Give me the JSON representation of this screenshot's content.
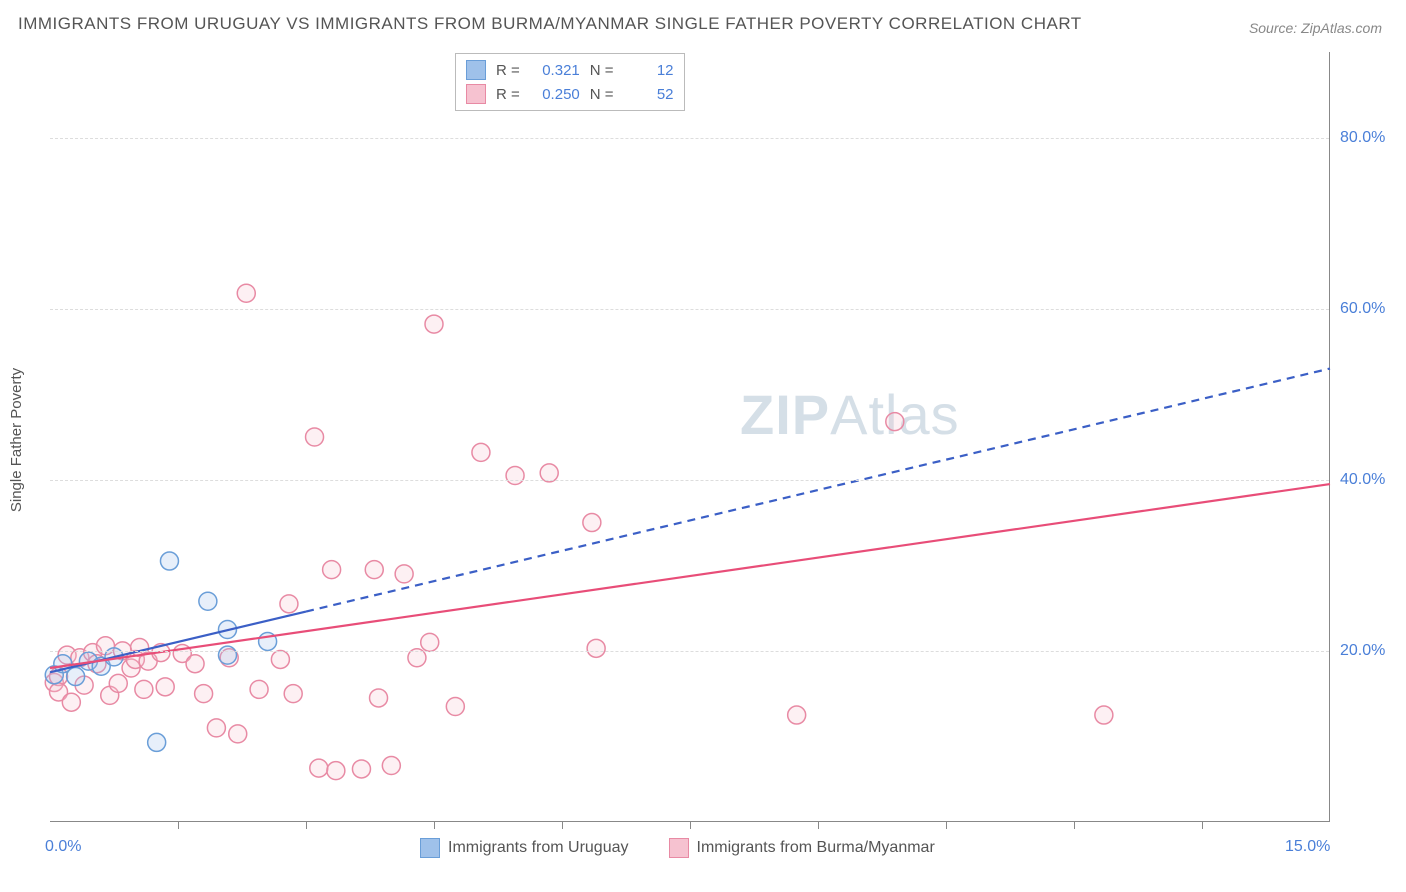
{
  "title": "IMMIGRANTS FROM URUGUAY VS IMMIGRANTS FROM BURMA/MYANMAR SINGLE FATHER POVERTY CORRELATION CHART",
  "source_label": "Source: ZipAtlas.com",
  "watermark_a": "ZIP",
  "watermark_b": "Atlas",
  "y_axis_label": "Single Father Poverty",
  "chart": {
    "type": "scatter",
    "xlim": [
      0,
      15
    ],
    "ylim": [
      0,
      90
    ],
    "x_ticks": [
      0,
      15
    ],
    "x_tick_labels": [
      "0.0%",
      "15.0%"
    ],
    "x_minor_ticks": [
      1.5,
      3.0,
      4.5,
      6.0,
      7.5,
      9.0,
      10.5,
      12.0,
      13.5
    ],
    "y_ticks": [
      20,
      40,
      60,
      80
    ],
    "y_tick_labels": [
      "20.0%",
      "40.0%",
      "60.0%",
      "80.0%"
    ],
    "grid_color": "#dddddd",
    "background_color": "#ffffff",
    "axis_label_color": "#4a7fd8",
    "axis_label_fontsize": 16,
    "marker_radius": 9,
    "marker_stroke_width": 1.5,
    "marker_fill_opacity": 0.25
  },
  "series": [
    {
      "name": "Immigrants from Uruguay",
      "color_fill": "#9fc1ea",
      "color_stroke": "#6a9ed8",
      "r_value": "0.321",
      "n_value": "12",
      "trend": {
        "x1": 0,
        "y1": 17.5,
        "x2": 15,
        "y2": 53,
        "dashed": true,
        "solid_until_x": 3.0,
        "color": "#3b5fc6",
        "width": 2.2
      },
      "points": [
        [
          0.05,
          17.2
        ],
        [
          0.15,
          18.5
        ],
        [
          0.3,
          17.0
        ],
        [
          0.45,
          18.8
        ],
        [
          0.6,
          18.2
        ],
        [
          0.75,
          19.3
        ],
        [
          1.25,
          9.3
        ],
        [
          1.4,
          30.5
        ],
        [
          1.85,
          25.8
        ],
        [
          2.08,
          22.5
        ],
        [
          2.08,
          19.5
        ],
        [
          2.55,
          21.1
        ]
      ]
    },
    {
      "name": "Immigrants from Burma/Myanmar",
      "color_fill": "#f6c2d0",
      "color_stroke": "#e88aa4",
      "r_value": "0.250",
      "n_value": "52",
      "trend": {
        "x1": 0,
        "y1": 18,
        "x2": 15,
        "y2": 39.5,
        "dashed": false,
        "color": "#e84d78",
        "width": 2.2
      },
      "points": [
        [
          0.05,
          16.3
        ],
        [
          0.1,
          17.0
        ],
        [
          0.1,
          15.2
        ],
        [
          0.2,
          19.5
        ],
        [
          0.25,
          14.0
        ],
        [
          0.35,
          19.2
        ],
        [
          0.4,
          16.0
        ],
        [
          0.5,
          19.8
        ],
        [
          0.55,
          18.5
        ],
        [
          0.65,
          20.6
        ],
        [
          0.7,
          14.8
        ],
        [
          0.8,
          16.2
        ],
        [
          0.85,
          20.0
        ],
        [
          0.95,
          18.0
        ],
        [
          1.0,
          19.0
        ],
        [
          1.05,
          20.4
        ],
        [
          1.1,
          15.5
        ],
        [
          1.15,
          18.8
        ],
        [
          1.3,
          19.8
        ],
        [
          1.35,
          15.8
        ],
        [
          1.55,
          19.7
        ],
        [
          1.7,
          18.5
        ],
        [
          1.8,
          15.0
        ],
        [
          1.95,
          11.0
        ],
        [
          2.1,
          19.2
        ],
        [
          2.2,
          10.3
        ],
        [
          2.3,
          61.8
        ],
        [
          2.45,
          15.5
        ],
        [
          2.7,
          19.0
        ],
        [
          2.8,
          25.5
        ],
        [
          2.85,
          15.0
        ],
        [
          3.1,
          45.0
        ],
        [
          3.15,
          6.3
        ],
        [
          3.3,
          29.5
        ],
        [
          3.35,
          6.0
        ],
        [
          3.65,
          6.2
        ],
        [
          3.8,
          29.5
        ],
        [
          3.85,
          14.5
        ],
        [
          4.0,
          6.6
        ],
        [
          4.15,
          29.0
        ],
        [
          4.3,
          19.2
        ],
        [
          4.45,
          21.0
        ],
        [
          4.5,
          58.2
        ],
        [
          4.75,
          13.5
        ],
        [
          5.05,
          43.2
        ],
        [
          5.45,
          40.5
        ],
        [
          5.85,
          40.8
        ],
        [
          6.35,
          35.0
        ],
        [
          6.4,
          20.3
        ],
        [
          8.75,
          12.5
        ],
        [
          9.9,
          46.8
        ],
        [
          12.35,
          12.5
        ]
      ]
    }
  ],
  "legend_top": {
    "r_label": "R  =",
    "n_label": "N  ="
  }
}
